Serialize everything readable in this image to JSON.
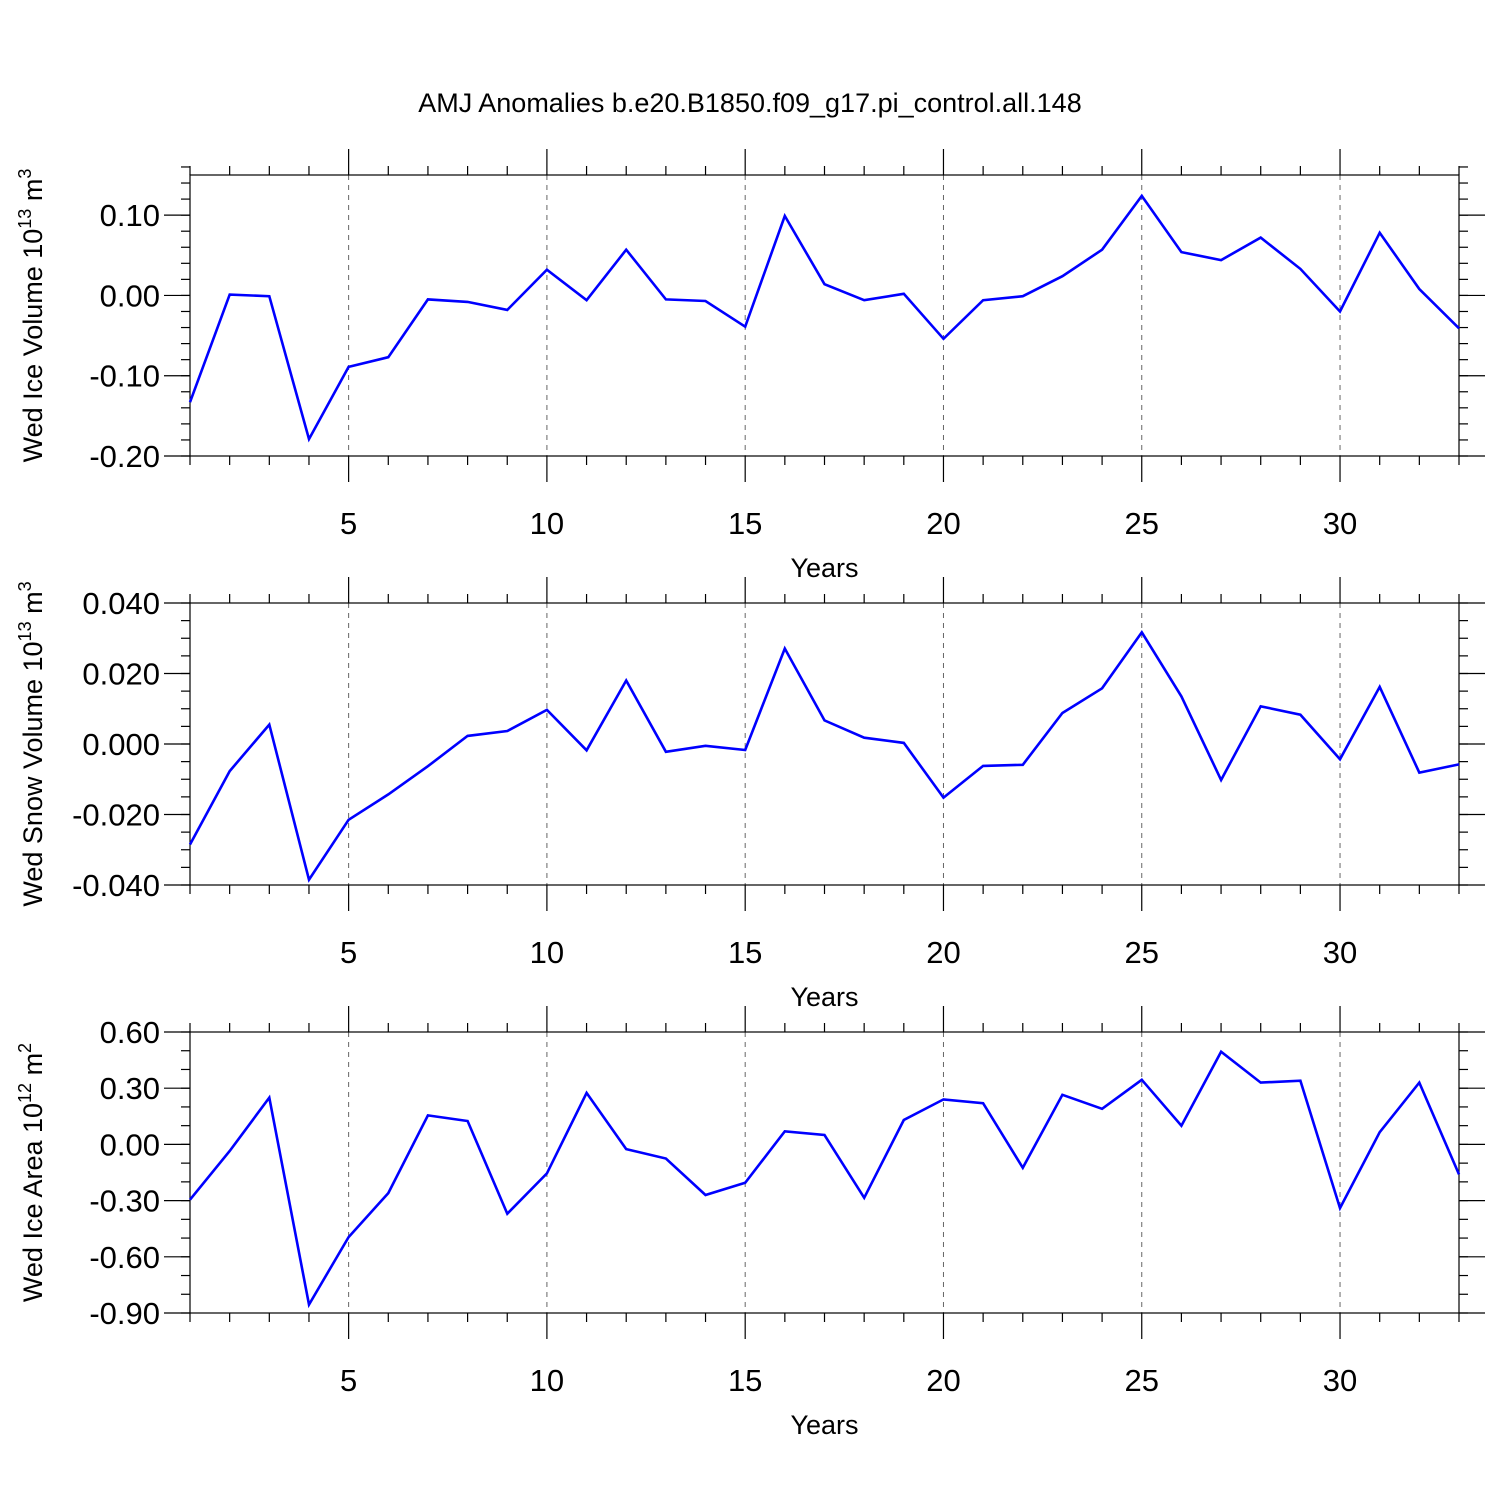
{
  "title": "AMJ Anomalies b.e20.B1850.f09_g17.pi_control.all.148",
  "chart_data": [
    {
      "type": "line",
      "xlabel": "Years",
      "ylabel": {
        "text": "Wed Ice Volume 10",
        "sup": "13",
        "unit": " m",
        "unit_sup": "3"
      },
      "xlim": [
        1,
        33
      ],
      "ylim": [
        -0.2,
        0.15
      ],
      "xticks": [
        5,
        10,
        15,
        20,
        25,
        30
      ],
      "yticks": [
        -0.2,
        -0.1,
        0.0,
        0.1
      ],
      "ytick_labels": [
        "-0.20",
        "-0.10",
        "0.00",
        "0.10"
      ],
      "y_minor_step": 0.02,
      "grid": "x-dashed",
      "color": "#0000ff",
      "x": [
        1,
        2,
        3,
        4,
        5,
        6,
        7,
        8,
        9,
        10,
        11,
        12,
        13,
        14,
        15,
        16,
        17,
        18,
        19,
        20,
        21,
        22,
        23,
        24,
        25,
        26,
        27,
        28,
        29,
        30,
        31,
        32,
        33
      ],
      "y": [
        -0.133,
        0.001,
        -0.001,
        -0.179,
        -0.089,
        -0.077,
        -0.005,
        -0.008,
        -0.018,
        0.032,
        -0.006,
        0.057,
        -0.005,
        -0.007,
        -0.039,
        0.099,
        0.014,
        -0.006,
        0.002,
        -0.054,
        -0.006,
        -0.001,
        0.024,
        0.057,
        0.124,
        0.054,
        0.044,
        0.072,
        0.033,
        -0.02,
        0.078,
        0.008,
        -0.041
      ]
    },
    {
      "type": "line",
      "xlabel": "Years",
      "ylabel": {
        "text": "Wed Snow Volume 10",
        "sup": "13",
        "unit": " m",
        "unit_sup": "3"
      },
      "xlim": [
        1,
        33
      ],
      "ylim": [
        -0.04,
        0.04
      ],
      "xticks": [
        5,
        10,
        15,
        20,
        25,
        30
      ],
      "yticks": [
        -0.04,
        -0.02,
        0.0,
        0.02,
        0.04
      ],
      "ytick_labels": [
        "-0.040",
        "-0.020",
        "0.000",
        "0.020",
        "0.040"
      ],
      "y_minor_step": 0.005,
      "grid": "x-dashed",
      "color": "#0000ff",
      "x": [
        1,
        2,
        3,
        4,
        5,
        6,
        7,
        8,
        9,
        10,
        11,
        12,
        13,
        14,
        15,
        16,
        17,
        18,
        19,
        20,
        21,
        22,
        23,
        24,
        25,
        26,
        27,
        28,
        29,
        30,
        31,
        32,
        33
      ],
      "y": [
        -0.0285,
        -0.0077,
        0.0055,
        -0.0385,
        -0.0215,
        -0.0143,
        -0.0063,
        0.0023,
        0.0037,
        0.0097,
        -0.0018,
        0.018,
        -0.0022,
        -0.0005,
        -0.0017,
        0.0271,
        0.0067,
        0.0018,
        0.0003,
        -0.0152,
        -0.0062,
        -0.0059,
        0.0088,
        0.0158,
        0.0317,
        0.0135,
        -0.0102,
        0.0107,
        0.0083,
        -0.0043,
        0.0162,
        -0.0081,
        -0.0058
      ]
    },
    {
      "type": "line",
      "xlabel": "Years",
      "ylabel": {
        "text": "Wed Ice Area 10",
        "sup": "12",
        "unit": " m",
        "unit_sup": "2"
      },
      "xlim": [
        1,
        33
      ],
      "ylim": [
        -0.9,
        0.6
      ],
      "xticks": [
        5,
        10,
        15,
        20,
        25,
        30
      ],
      "yticks": [
        -0.9,
        -0.6,
        -0.3,
        0.0,
        0.3,
        0.6
      ],
      "ytick_labels": [
        "-0.90",
        "-0.60",
        "-0.30",
        "0.00",
        "0.30",
        "0.60"
      ],
      "y_minor_step": 0.1,
      "grid": "x-dashed",
      "color": "#0000ff",
      "x": [
        1,
        2,
        3,
        4,
        5,
        6,
        7,
        8,
        9,
        10,
        11,
        12,
        13,
        14,
        15,
        16,
        17,
        18,
        19,
        20,
        21,
        22,
        23,
        24,
        25,
        26,
        27,
        28,
        29,
        30,
        31,
        32,
        33
      ],
      "y": [
        -0.295,
        -0.035,
        0.25,
        -0.855,
        -0.495,
        -0.26,
        0.155,
        0.125,
        -0.37,
        -0.155,
        0.275,
        -0.025,
        -0.075,
        -0.27,
        -0.205,
        0.07,
        0.05,
        -0.285,
        0.13,
        0.24,
        0.22,
        -0.125,
        0.265,
        0.19,
        0.345,
        0.1,
        0.495,
        0.33,
        0.34,
        -0.34,
        0.065,
        0.33,
        -0.16
      ]
    }
  ]
}
